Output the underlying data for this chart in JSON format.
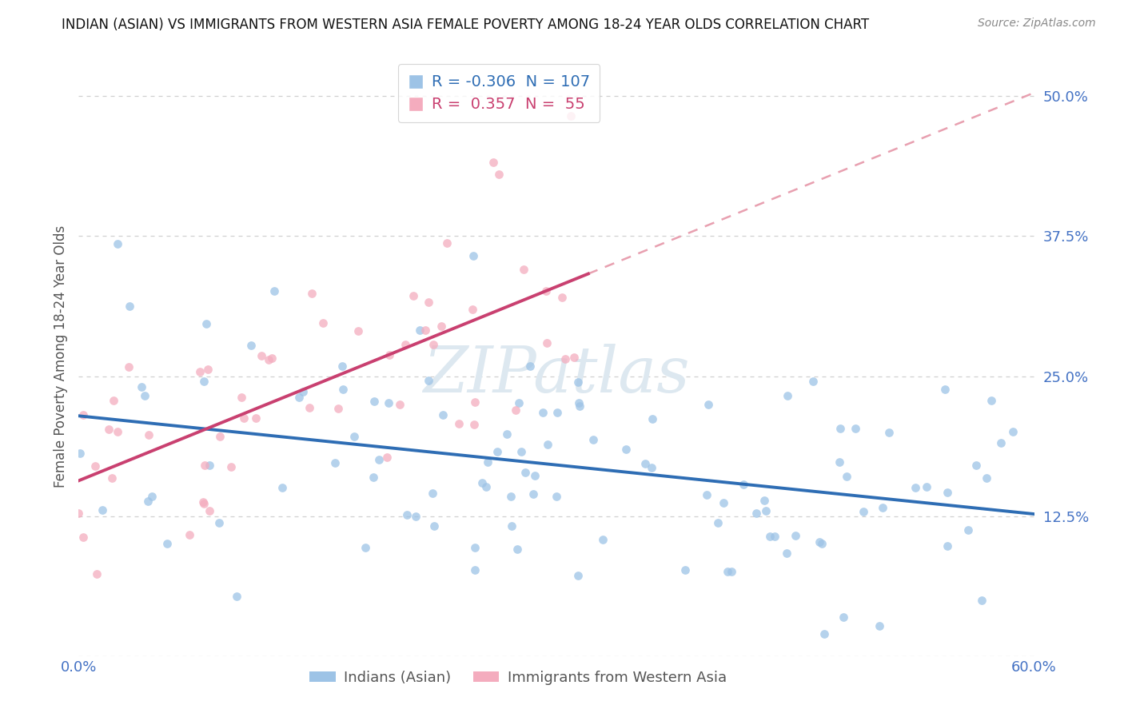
{
  "title": "INDIAN (ASIAN) VS IMMIGRANTS FROM WESTERN ASIA FEMALE POVERTY AMONG 18-24 YEAR OLDS CORRELATION CHART",
  "source": "Source: ZipAtlas.com",
  "ylabel": "Female Poverty Among 18-24 Year Olds",
  "ytick_vals": [
    0.0,
    0.125,
    0.25,
    0.375,
    0.5
  ],
  "ytick_labels": [
    "",
    "12.5%",
    "25.0%",
    "37.5%",
    "50.0%"
  ],
  "xmin": 0.0,
  "xmax": 0.6,
  "ymin": 0.0,
  "ymax": 0.535,
  "watermark_text": "ZIPatlas",
  "series1_color": "#9dc3e6",
  "series2_color": "#f4acbe",
  "trend1_color": "#2e6db4",
  "trend2_color": "#c94070",
  "trend2_dashed_color": "#e8a0b0",
  "series1_name": "Indians (Asian)",
  "series2_name": "Immigrants from Western Asia",
  "series1_R": -0.306,
  "series1_N": 107,
  "series2_R": 0.357,
  "series2_N": 55,
  "trend1_intercept": 0.222,
  "trend1_slope": -0.165,
  "trend2_intercept": 0.155,
  "trend2_slope": 0.6,
  "trend2_solid_end": 0.32,
  "background": "#ffffff",
  "grid_color": "#d0d0d0",
  "title_fontsize": 12,
  "source_fontsize": 10,
  "ylabel_fontsize": 12,
  "tick_fontsize": 13,
  "legend_fontsize": 13,
  "marker_size": 60,
  "marker_alpha": 0.75
}
